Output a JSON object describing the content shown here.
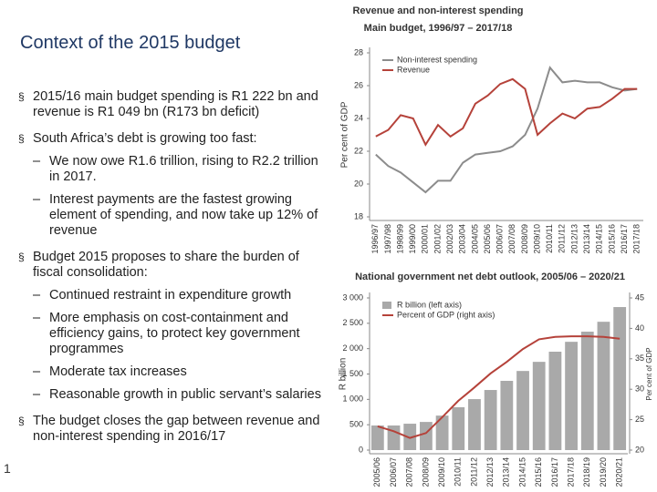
{
  "slide": {
    "title": "Context of the 2015 budget",
    "page_number": "1",
    "bullets": [
      {
        "level": 1,
        "text": "2015/16 main budget spending is R1 222 bn and revenue is R1 049 bn (R173 bn deficit)"
      },
      {
        "level": 1,
        "text": "South Africa’s debt is growing too fast:"
      },
      {
        "level": 2,
        "text": "We now owe R1.6 trillion, rising to R2.2 trillion in 2017."
      },
      {
        "level": 2,
        "text": "Interest payments are the fastest growing element of spending, and now take up 12% of revenue"
      },
      {
        "level": 1,
        "text": "Budget 2015 proposes to share the burden of fiscal consolidation:"
      },
      {
        "level": 2,
        "text": "Continued restraint in expenditure growth"
      },
      {
        "level": 2,
        "text": "More emphasis on cost-containment and efficiency gains, to protect key government programmes"
      },
      {
        "level": 2,
        "text": "Moderate tax increases"
      },
      {
        "level": 2,
        "text": "Reasonable growth in public servant’s salaries"
      },
      {
        "level": 1,
        "text": "The budget closes the gap between revenue and non-interest spending in 2016/17"
      }
    ]
  },
  "chart_data": [
    {
      "type": "line",
      "title": "Revenue and non-interest spending",
      "subtitle": "Main budget, 1996/97 – 2017/18",
      "y_label": "Per cent of GDP",
      "categories": [
        "1996/97",
        "1997/98",
        "1998/99",
        "1999/00",
        "2000/01",
        "2001/02",
        "2002/03",
        "2003/04",
        "2004/05",
        "2005/06",
        "2006/07",
        "2007/08",
        "2008/09",
        "2009/10",
        "2010/11",
        "2011/12",
        "2012/13",
        "2013/14",
        "2014/15",
        "2015/16",
        "2016/17",
        "2017/18"
      ],
      "series": [
        {
          "name": "Non-interest spending",
          "color": "#8c8c8c",
          "values": [
            21.8,
            21.1,
            20.7,
            20.1,
            19.5,
            20.2,
            20.2,
            21.3,
            21.8,
            21.9,
            22.0,
            22.3,
            23.0,
            24.6,
            27.1,
            26.2,
            26.3,
            26.2,
            26.2,
            25.9,
            25.7,
            25.8
          ]
        },
        {
          "name": "Revenue",
          "color": "#b5423a",
          "values": [
            22.9,
            23.3,
            24.2,
            24.0,
            22.4,
            23.6,
            22.9,
            23.4,
            24.9,
            25.4,
            26.1,
            26.4,
            25.8,
            23.0,
            23.7,
            24.3,
            24.0,
            24.6,
            24.7,
            25.2,
            25.8,
            25.8
          ]
        }
      ],
      "ylim": [
        18,
        28
      ],
      "yticks": [
        18,
        20,
        22,
        24,
        26,
        28
      ]
    },
    {
      "type": "bar",
      "title": "National government net debt outlook, 2005/06 – 2020/21",
      "y_label": "R billion",
      "y2_label": "Per cent of GDP",
      "categories": [
        "2005/06",
        "2006/07",
        "2007/08",
        "2008/09",
        "2009/10",
        "2010/11",
        "2011/12",
        "2012/13",
        "2013/14",
        "2014/15",
        "2015/16",
        "2016/17",
        "2017/18",
        "2018/19",
        "2019/20",
        "2020/21"
      ],
      "series": [
        {
          "name": "R billion (left axis)",
          "type": "bar",
          "color": "#a9a9a9",
          "values": [
            485,
            485,
            520,
            555,
            680,
            845,
            1005,
            1185,
            1365,
            1560,
            1740,
            1940,
            2135,
            2335,
            2530,
            2820
          ]
        },
        {
          "name": "Percent of GDP (right axis)",
          "type": "line",
          "axis": "y2",
          "color": "#b5423a",
          "values": [
            23.9,
            23.1,
            22.0,
            22.8,
            25.4,
            28.1,
            30.3,
            32.6,
            34.5,
            36.6,
            38.2,
            38.6,
            38.7,
            38.7,
            38.6,
            38.3
          ]
        }
      ],
      "ylim": [
        0,
        3000
      ],
      "yticks": [
        0,
        500,
        {
          "value": 1000,
          "label": "1 000"
        },
        {
          "value": 1500,
          "label": "1 500"
        },
        {
          "value": 2000,
          "label": "2 000"
        },
        {
          "value": 2500,
          "label": "2 500"
        },
        {
          "value": 3000,
          "label": "3 000"
        }
      ],
      "y2lim": [
        20,
        45
      ],
      "y2ticks": [
        20,
        25,
        30,
        35,
        40,
        45
      ]
    }
  ]
}
